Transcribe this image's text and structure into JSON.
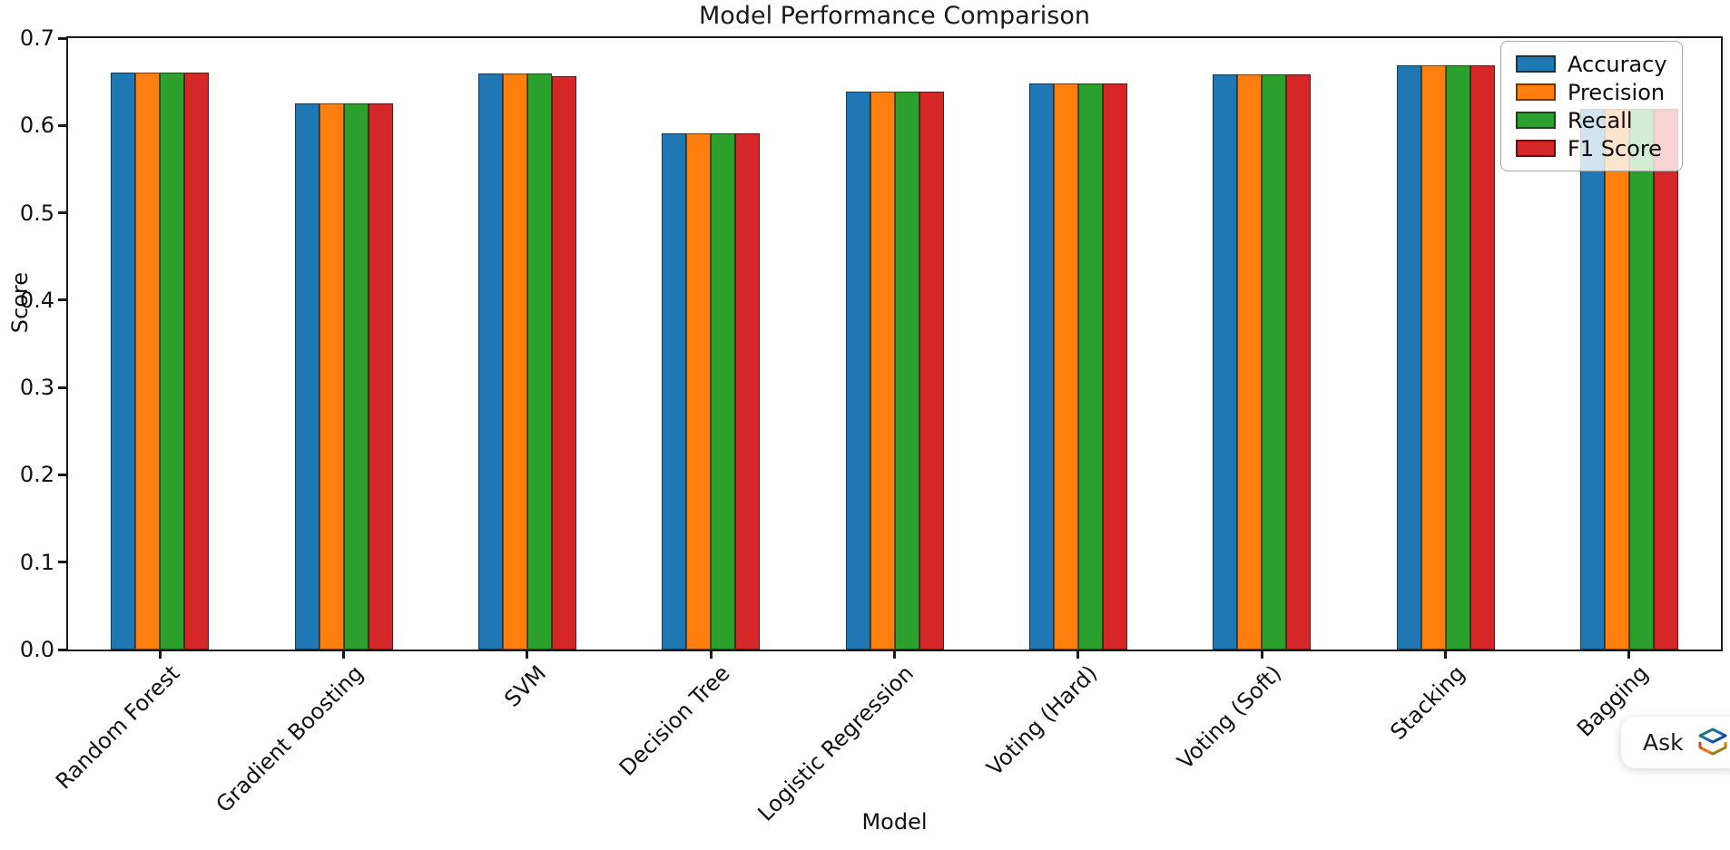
{
  "chart_data": {
    "type": "bar",
    "title": "Model Performance Comparison",
    "xlabel": "Model",
    "ylabel": "Score",
    "ylim": [
      0,
      0.7
    ],
    "yticks": [
      "0.0",
      "0.1",
      "0.2",
      "0.3",
      "0.4",
      "0.5",
      "0.6",
      "0.7"
    ],
    "grid": false,
    "legend_position": "upper right",
    "categories": [
      "Random Forest",
      "Gradient Boosting",
      "SVM",
      "Decision Tree",
      "Logistic Regression",
      "Voting (Hard)",
      "Voting (Soft)",
      "Stacking",
      "Bagging"
    ],
    "series": [
      {
        "name": "Accuracy",
        "color": "#1f77b4",
        "values": [
          0.661,
          0.625,
          0.659,
          0.591,
          0.639,
          0.648,
          0.658,
          0.669,
          0.619
        ]
      },
      {
        "name": "Precision",
        "color": "#ff7f0e",
        "values": [
          0.661,
          0.625,
          0.659,
          0.591,
          0.639,
          0.648,
          0.658,
          0.669,
          0.619
        ]
      },
      {
        "name": "Recall",
        "color": "#2ca02c",
        "values": [
          0.661,
          0.625,
          0.659,
          0.591,
          0.639,
          0.648,
          0.658,
          0.669,
          0.619
        ]
      },
      {
        "name": "F1 Score",
        "color": "#d62728",
        "values": [
          0.661,
          0.625,
          0.656,
          0.591,
          0.639,
          0.648,
          0.658,
          0.669,
          0.619
        ]
      }
    ]
  },
  "overlay": {
    "ask_label": "Ask",
    "ask_icon": "layers-logo-icon"
  },
  "colors": {
    "accuracy": "#1f77b4",
    "precision": "#ff7f0e",
    "recall": "#2ca02c",
    "f1_score": "#d62728",
    "spine": "#1a1a1a"
  }
}
